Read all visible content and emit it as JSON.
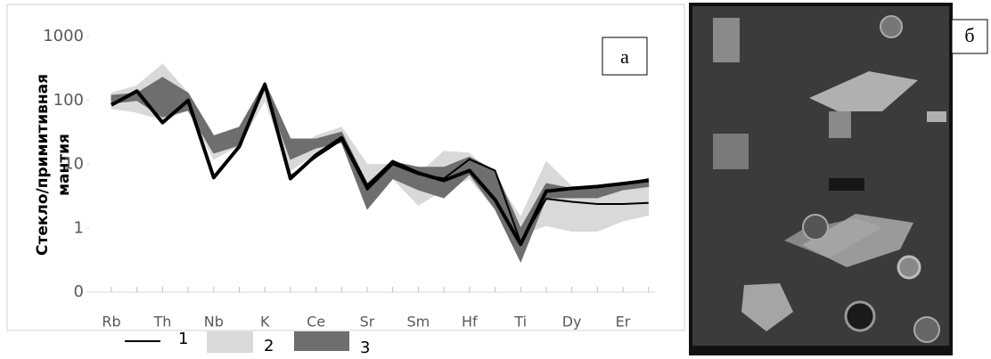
{
  "chart_data": {
    "type": "line",
    "panel_label": "а",
    "y_label_lines": [
      "Стекло/примитивная",
      "мантия"
    ],
    "categories": [
      "Rb",
      null,
      "Th",
      null,
      "Nb",
      null,
      "K",
      null,
      "Ce",
      null,
      "Sr",
      null,
      "Sm",
      null,
      "Hf",
      null,
      "Ti",
      null,
      "Dy",
      null,
      "Er",
      null
    ],
    "log_y": true,
    "ylim": [
      0.1,
      1000
    ],
    "yticks": [
      {
        "value": 0.1,
        "label": "0"
      },
      1,
      10,
      100,
      1000
    ],
    "series": [
      {
        "name": "1",
        "color": "#000000",
        "lines": [
          [
            85,
            140,
            45,
            100,
            6.2,
            19,
            178,
            6,
            14,
            26,
            4.5,
            11,
            7.3,
            5.6,
            8,
            2.8,
            0.56,
            3.8,
            4.2,
            4.5,
            5,
            5.6
          ],
          [
            85,
            140,
            45,
            100,
            6.5,
            19,
            178,
            6.5,
            13,
            24,
            4,
            10,
            7,
            6,
            12,
            8,
            0.6,
            2.9,
            2.6,
            2.4,
            2.4,
            2.5
          ]
        ]
      },
      {
        "name": "2",
        "color": "#d9d9d9",
        "low": [
          75,
          65,
          50,
          70,
          12,
          20,
          100,
          8,
          15,
          25,
          2,
          6,
          2.3,
          4,
          6,
          2,
          0.8,
          1.1,
          0.9,
          0.9,
          1.3,
          1.6
        ],
        "high": [
          130,
          170,
          370,
          130,
          25,
          35,
          200,
          15,
          28,
          38,
          10,
          10,
          7,
          16,
          15,
          6,
          1.5,
          11,
          4.5,
          4.5,
          4.5,
          4.8
        ]
      },
      {
        "name": "3",
        "color": "#6e6e6e",
        "low": [
          90,
          100,
          55,
          70,
          15,
          20,
          150,
          12,
          18,
          22,
          2,
          6,
          4,
          3,
          7,
          2,
          0.3,
          3,
          3,
          3,
          4,
          4.5
        ],
        "high": [
          120,
          130,
          230,
          130,
          28,
          38,
          190,
          25,
          25,
          32,
          5,
          11,
          9,
          9,
          13,
          8,
          1,
          5,
          4.2,
          4.5,
          5,
          6
        ]
      }
    ]
  },
  "photo_label": "б"
}
